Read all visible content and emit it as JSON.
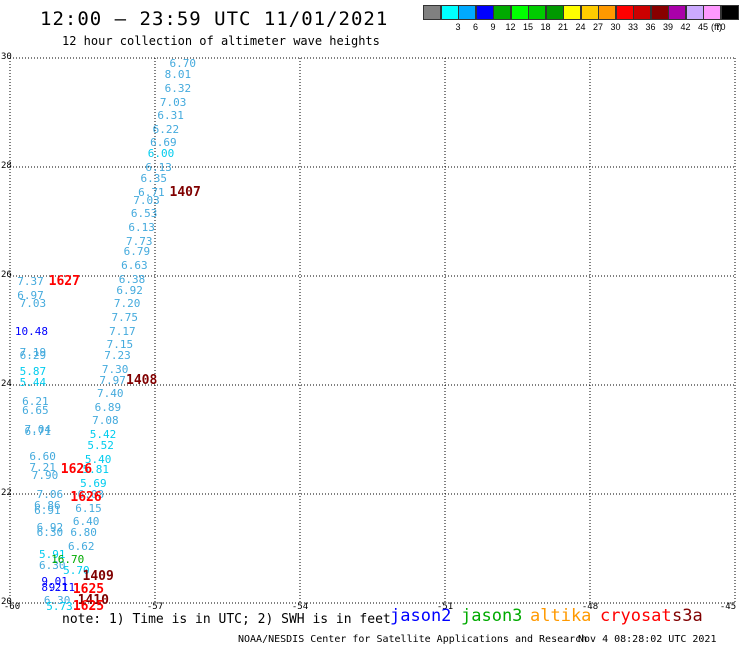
{
  "title": "12:00 – 23:59 UTC 11/01/2021",
  "subtitle": "12 hour collection of altimeter wave heights",
  "legend": {
    "unit": "(ft)",
    "items": [
      {
        "label": "",
        "color": "#808080"
      },
      {
        "label": "3",
        "color": "#00ffff"
      },
      {
        "label": "6",
        "color": "#00aaff"
      },
      {
        "label": "9",
        "color": "#0000ff"
      },
      {
        "label": "12",
        "color": "#00aa00"
      },
      {
        "label": "15",
        "color": "#00ff00"
      },
      {
        "label": "18",
        "color": "#00cc00"
      },
      {
        "label": "21",
        "color": "#009900"
      },
      {
        "label": "24",
        "color": "#ffff00"
      },
      {
        "label": "27",
        "color": "#ffcc00"
      },
      {
        "label": "30",
        "color": "#ff9900"
      },
      {
        "label": "33",
        "color": "#ff0000"
      },
      {
        "label": "36",
        "color": "#cc0000"
      },
      {
        "label": "39",
        "color": "#880000"
      },
      {
        "label": "42",
        "color": "#aa00aa"
      },
      {
        "label": "45",
        "color": "#ccaaff"
      },
      {
        "label": "70",
        "color": "#ff99ff"
      },
      {
        "label": "",
        "color": "#000000"
      }
    ]
  },
  "map": {
    "lat_ticks": [
      "30",
      "28",
      "26",
      "24",
      "22",
      "20"
    ],
    "lon_ticks": [
      "-60",
      "-57",
      "-54",
      "-51",
      "-48",
      "-45"
    ],
    "lat_range": [
      20,
      30
    ],
    "lon_range": [
      -60,
      -45
    ]
  },
  "colors": {
    "cyan": "#00ccee",
    "lightblue": "#44aadd",
    "blue": "#0000ff",
    "green": "#00aa00",
    "orange": "#ff9900",
    "red": "#ff0000",
    "darkred": "#800000"
  },
  "observations": [
    {
      "v": "6.70",
      "lon": -56.7,
      "lat": 29.9,
      "c": "lightblue"
    },
    {
      "v": "8.01",
      "lon": -56.8,
      "lat": 29.7,
      "c": "lightblue"
    },
    {
      "v": "6.32",
      "lon": -56.8,
      "lat": 29.45,
      "c": "lightblue"
    },
    {
      "v": "7.03",
      "lon": -56.9,
      "lat": 29.2,
      "c": "lightblue"
    },
    {
      "v": "6.31",
      "lon": -56.95,
      "lat": 28.95,
      "c": "lightblue"
    },
    {
      "v": "6.22",
      "lon": -57.05,
      "lat": 28.7,
      "c": "lightblue"
    },
    {
      "v": "6.69",
      "lon": -57.1,
      "lat": 28.45,
      "c": "lightblue"
    },
    {
      "v": "6.00",
      "lon": -57.15,
      "lat": 28.25,
      "c": "cyan"
    },
    {
      "v": "6.13",
      "lon": -57.2,
      "lat": 28.0,
      "c": "lightblue"
    },
    {
      "v": "6.35",
      "lon": -57.3,
      "lat": 27.8,
      "c": "lightblue"
    },
    {
      "v": "6.71",
      "lon": -57.35,
      "lat": 27.55,
      "c": "lightblue"
    },
    {
      "v": "7.03",
      "lon": -57.45,
      "lat": 27.4,
      "c": "lightblue"
    },
    {
      "v": "6.53",
      "lon": -57.5,
      "lat": 27.15,
      "c": "lightblue"
    },
    {
      "v": "6.13",
      "lon": -57.55,
      "lat": 26.9,
      "c": "lightblue"
    },
    {
      "v": "7.73",
      "lon": -57.6,
      "lat": 26.65,
      "c": "lightblue"
    },
    {
      "v": "6.79",
      "lon": -57.65,
      "lat": 26.45,
      "c": "lightblue"
    },
    {
      "v": "6.63",
      "lon": -57.7,
      "lat": 26.2,
      "c": "lightblue"
    },
    {
      "v": "6.38",
      "lon": -57.75,
      "lat": 25.95,
      "c": "lightblue"
    },
    {
      "v": "6.92",
      "lon": -57.8,
      "lat": 25.75,
      "c": "lightblue"
    },
    {
      "v": "7.20",
      "lon": -57.85,
      "lat": 25.5,
      "c": "lightblue"
    },
    {
      "v": "7.75",
      "lon": -57.9,
      "lat": 25.25,
      "c": "lightblue"
    },
    {
      "v": "7.17",
      "lon": -57.95,
      "lat": 25.0,
      "c": "lightblue"
    },
    {
      "v": "7.15",
      "lon": -58.0,
      "lat": 24.75,
      "c": "lightblue"
    },
    {
      "v": "7.23",
      "lon": -58.05,
      "lat": 24.55,
      "c": "lightblue"
    },
    {
      "v": "7.30",
      "lon": -58.1,
      "lat": 24.3,
      "c": "lightblue"
    },
    {
      "v": "7.97",
      "lon": -58.15,
      "lat": 24.1,
      "c": "lightblue"
    },
    {
      "v": "7.40",
      "lon": -58.2,
      "lat": 23.85,
      "c": "lightblue"
    },
    {
      "v": "6.89",
      "lon": -58.25,
      "lat": 23.6,
      "c": "lightblue"
    },
    {
      "v": "7.08",
      "lon": -58.3,
      "lat": 23.35,
      "c": "lightblue"
    },
    {
      "v": "5.42",
      "lon": -58.35,
      "lat": 23.1,
      "c": "cyan"
    },
    {
      "v": "5.52",
      "lon": -58.4,
      "lat": 22.9,
      "c": "cyan"
    },
    {
      "v": "5.40",
      "lon": -58.45,
      "lat": 22.65,
      "c": "cyan"
    },
    {
      "v": "5.81",
      "lon": -58.5,
      "lat": 22.45,
      "c": "cyan"
    },
    {
      "v": "5.69",
      "lon": -58.55,
      "lat": 22.2,
      "c": "cyan"
    },
    {
      "v": "6.03",
      "lon": -58.6,
      "lat": 22.0,
      "c": "lightblue"
    },
    {
      "v": "6.15",
      "lon": -58.65,
      "lat": 21.75,
      "c": "lightblue"
    },
    {
      "v": "6.40",
      "lon": -58.7,
      "lat": 21.5,
      "c": "lightblue"
    },
    {
      "v": "6.80",
      "lon": -58.75,
      "lat": 21.3,
      "c": "lightblue"
    },
    {
      "v": "6.62",
      "lon": -58.8,
      "lat": 21.05,
      "c": "lightblue"
    },
    {
      "v": "5.70",
      "lon": -58.9,
      "lat": 20.6,
      "c": "cyan"
    },
    {
      "v": "7.37",
      "lon": -59.85,
      "lat": 25.9,
      "c": "lightblue"
    },
    {
      "v": "6.97",
      "lon": -59.85,
      "lat": 25.65,
      "c": "lightblue"
    },
    {
      "v": "7.03",
      "lon": -59.8,
      "lat": 25.5,
      "c": "lightblue"
    },
    {
      "v": "10.48",
      "lon": -59.9,
      "lat": 25.0,
      "c": "blue"
    },
    {
      "v": "7.19",
      "lon": -59.8,
      "lat": 24.6,
      "c": "lightblue"
    },
    {
      "v": "6.29",
      "lon": -59.8,
      "lat": 24.55,
      "c": "lightblue"
    },
    {
      "v": "5.87",
      "lon": -59.8,
      "lat": 24.25,
      "c": "cyan"
    },
    {
      "v": "5.44",
      "lon": -59.8,
      "lat": 24.05,
      "c": "cyan"
    },
    {
      "v": "6.21",
      "lon": -59.75,
      "lat": 23.7,
      "c": "lightblue"
    },
    {
      "v": "6.65",
      "lon": -59.75,
      "lat": 23.55,
      "c": "lightblue"
    },
    {
      "v": "7.04",
      "lon": -59.7,
      "lat": 23.2,
      "c": "lightblue"
    },
    {
      "v": "6.71",
      "lon": -59.7,
      "lat": 23.15,
      "c": "lightblue"
    },
    {
      "v": "6.60",
      "lon": -59.6,
      "lat": 22.7,
      "c": "lightblue"
    },
    {
      "v": "7.21",
      "lon": -59.6,
      "lat": 22.5,
      "c": "lightblue"
    },
    {
      "v": "7.90",
      "lon": -59.55,
      "lat": 22.35,
      "c": "lightblue"
    },
    {
      "v": "7.06",
      "lon": -59.45,
      "lat": 22.0,
      "c": "lightblue"
    },
    {
      "v": "6.86",
      "lon": -59.5,
      "lat": 21.8,
      "c": "lightblue"
    },
    {
      "v": "6.91",
      "lon": -59.5,
      "lat": 21.7,
      "c": "lightblue"
    },
    {
      "v": "6.92",
      "lon": -59.45,
      "lat": 21.4,
      "c": "lightblue"
    },
    {
      "v": "6.30",
      "lon": -59.45,
      "lat": 21.3,
      "c": "lightblue"
    },
    {
      "v": "5.91",
      "lon": -59.4,
      "lat": 20.9,
      "c": "cyan"
    },
    {
      "v": "6.30",
      "lon": -59.4,
      "lat": 20.7,
      "c": "lightblue"
    },
    {
      "v": "16.70",
      "lon": -59.15,
      "lat": 20.8,
      "c": "green"
    },
    {
      "v": "9.01",
      "lon": -59.35,
      "lat": 20.4,
      "c": "blue"
    },
    {
      "v": "8.21",
      "lon": -59.35,
      "lat": 20.3,
      "c": "blue"
    },
    {
      "v": "9.11",
      "lon": -59.2,
      "lat": 20.3,
      "c": "blue"
    },
    {
      "v": "6.30",
      "lon": -59.3,
      "lat": 20.05,
      "c": "lightblue"
    },
    {
      "v": "5.73",
      "lon": -59.25,
      "lat": 19.95,
      "c": "cyan"
    }
  ],
  "times": [
    {
      "t": "1407",
      "lon": -56.7,
      "lat": 27.55,
      "c": "darkred"
    },
    {
      "t": "1627",
      "lon": -59.2,
      "lat": 25.9,
      "c": "red"
    },
    {
      "t": "1408",
      "lon": -57.6,
      "lat": 24.1,
      "c": "darkred"
    },
    {
      "t": "1626",
      "lon": -58.95,
      "lat": 22.45,
      "c": "red"
    },
    {
      "t": "1626",
      "lon": -58.75,
      "lat": 21.95,
      "c": "red"
    },
    {
      "t": "1409",
      "lon": -58.5,
      "lat": 20.5,
      "c": "darkred"
    },
    {
      "t": "1625",
      "lon": -58.7,
      "lat": 20.25,
      "c": "red"
    },
    {
      "t": "1410",
      "lon": -58.6,
      "lat": 20.05,
      "c": "darkred"
    },
    {
      "t": "1625",
      "lon": -58.7,
      "lat": 19.95,
      "c": "red"
    }
  ],
  "note": "note:  1) Time is in UTC; 2) SWH is in feet",
  "satellites": [
    {
      "name": "jason2",
      "color": "#0000ff"
    },
    {
      "name": "jason3",
      "color": "#00aa00"
    },
    {
      "name": "altika",
      "color": "#ff9900"
    },
    {
      "name": "cryosat",
      "color": "#ff0000"
    },
    {
      "name": "s3a",
      "color": "#800000"
    }
  ],
  "footer_left": "NOAA/NESDIS Center for Satellite Applications and Research",
  "footer_right": "Nov  4 08:28:02 UTC 2021"
}
